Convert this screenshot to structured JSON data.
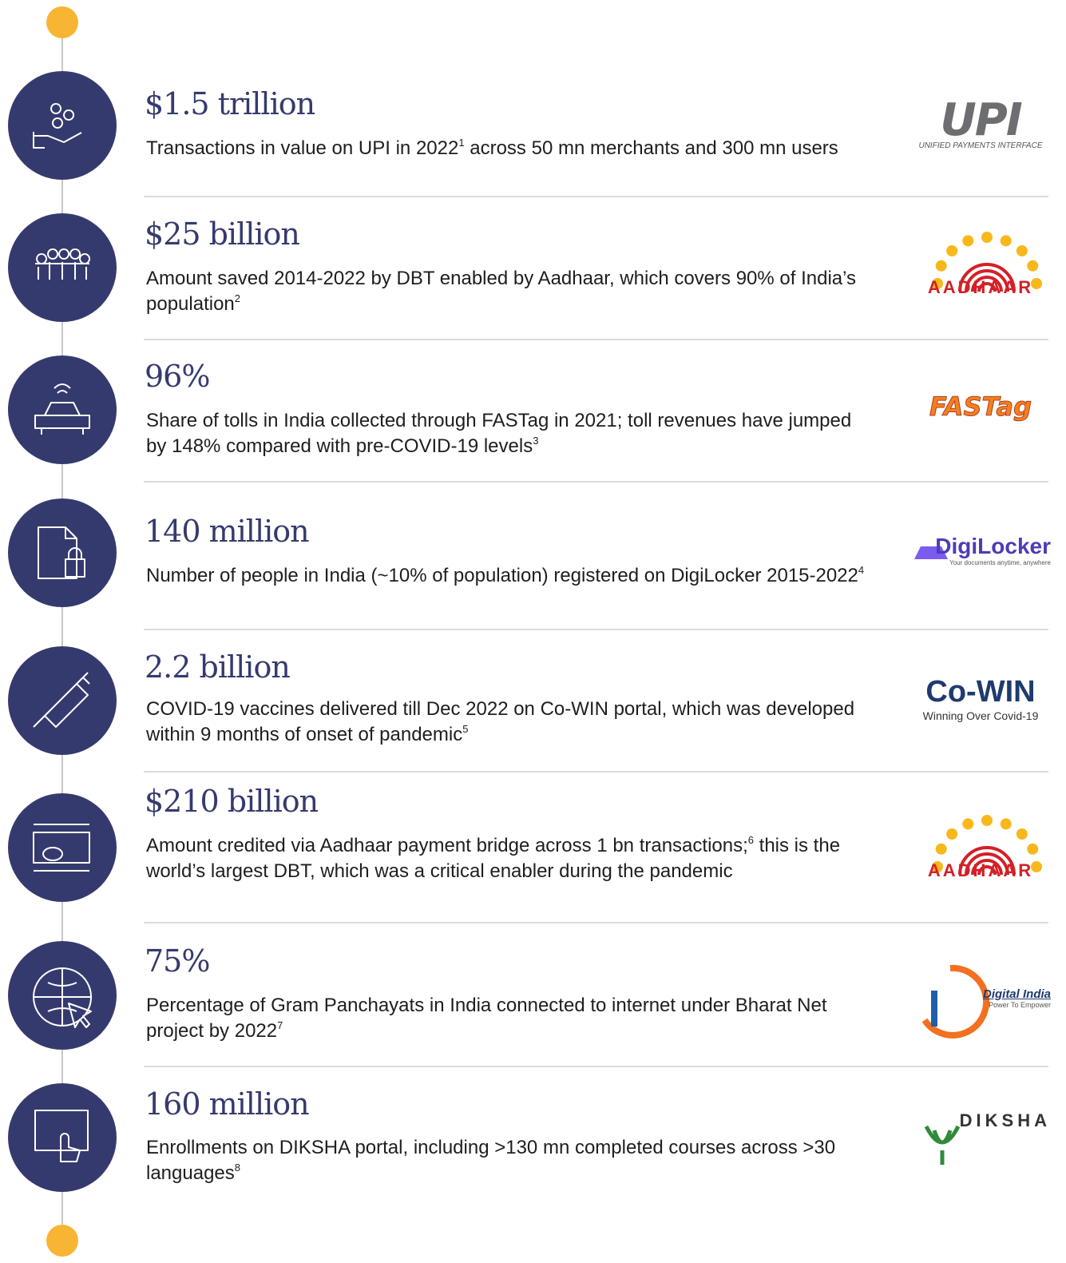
{
  "items": [
    {
      "headline": "$1.5 trillion",
      "description": [
        {
          "text": "Transactions in value on UPI in 2022"
        },
        {
          "sup": "1"
        },
        {
          "text": " across 50 mn merchants and 300 mn users"
        }
      ],
      "logo": {
        "name": "UPI",
        "tagline": "UNIFIED PAYMENTS INTERFACE"
      }
    },
    {
      "headline": "$25 billion",
      "description": [
        {
          "text": "Amount saved 2014-2022 by DBT enabled by Aadhaar, which covers 90% of India’s population"
        },
        {
          "sup": "2"
        }
      ],
      "logo": {
        "name": "AADHAAR"
      }
    },
    {
      "headline": "96%",
      "description": [
        {
          "text": "Share of tolls in India collected through FASTag in 2021; toll revenues have jumped by 148% compared with pre-COVID-19 levels"
        },
        {
          "sup": "3"
        }
      ],
      "logo": {
        "name": "FASTag"
      }
    },
    {
      "headline": "140 million",
      "description": [
        {
          "text": "Number of people in India (~10% of population) registered on DigiLocker 2015-2022"
        },
        {
          "sup": "4"
        }
      ],
      "logo": {
        "name": "DigiLocker",
        "tagline": "Your documents anytime, anywhere"
      }
    },
    {
      "headline": "2.2 billion",
      "description": [
        {
          "text": "COVID-19 vaccines delivered till Dec 2022 on Co-WIN portal, which was developed within 9 months of onset of pandemic"
        },
        {
          "sup": "5"
        }
      ],
      "logo": {
        "name": "Co-WIN",
        "tagline": "Winning Over Covid-19"
      }
    },
    {
      "headline": "$210 billion",
      "description": [
        {
          "text": "Amount credited via Aadhaar payment bridge across 1 bn transactions;"
        },
        {
          "sup": "6"
        },
        {
          "text": " this is the world’s largest DBT, which was a critical enabler during the pandemic"
        }
      ],
      "logo": {
        "name": "AADHAAR"
      }
    },
    {
      "headline": "75%",
      "description": [
        {
          "text": "Percentage of Gram Panchayats in India connected to internet under Bharat Net project by 2022"
        },
        {
          "sup": "7"
        }
      ],
      "logo": {
        "name": "Digital India",
        "tagline": "Power To Empower"
      }
    },
    {
      "headline": "160 million",
      "description": [
        {
          "text": "Enrollments on DIKSHA portal, including >130 mn completed courses across >30 languages"
        },
        {
          "sup": "8"
        }
      ],
      "logo": {
        "name": "DIKSHA"
      }
    }
  ]
}
